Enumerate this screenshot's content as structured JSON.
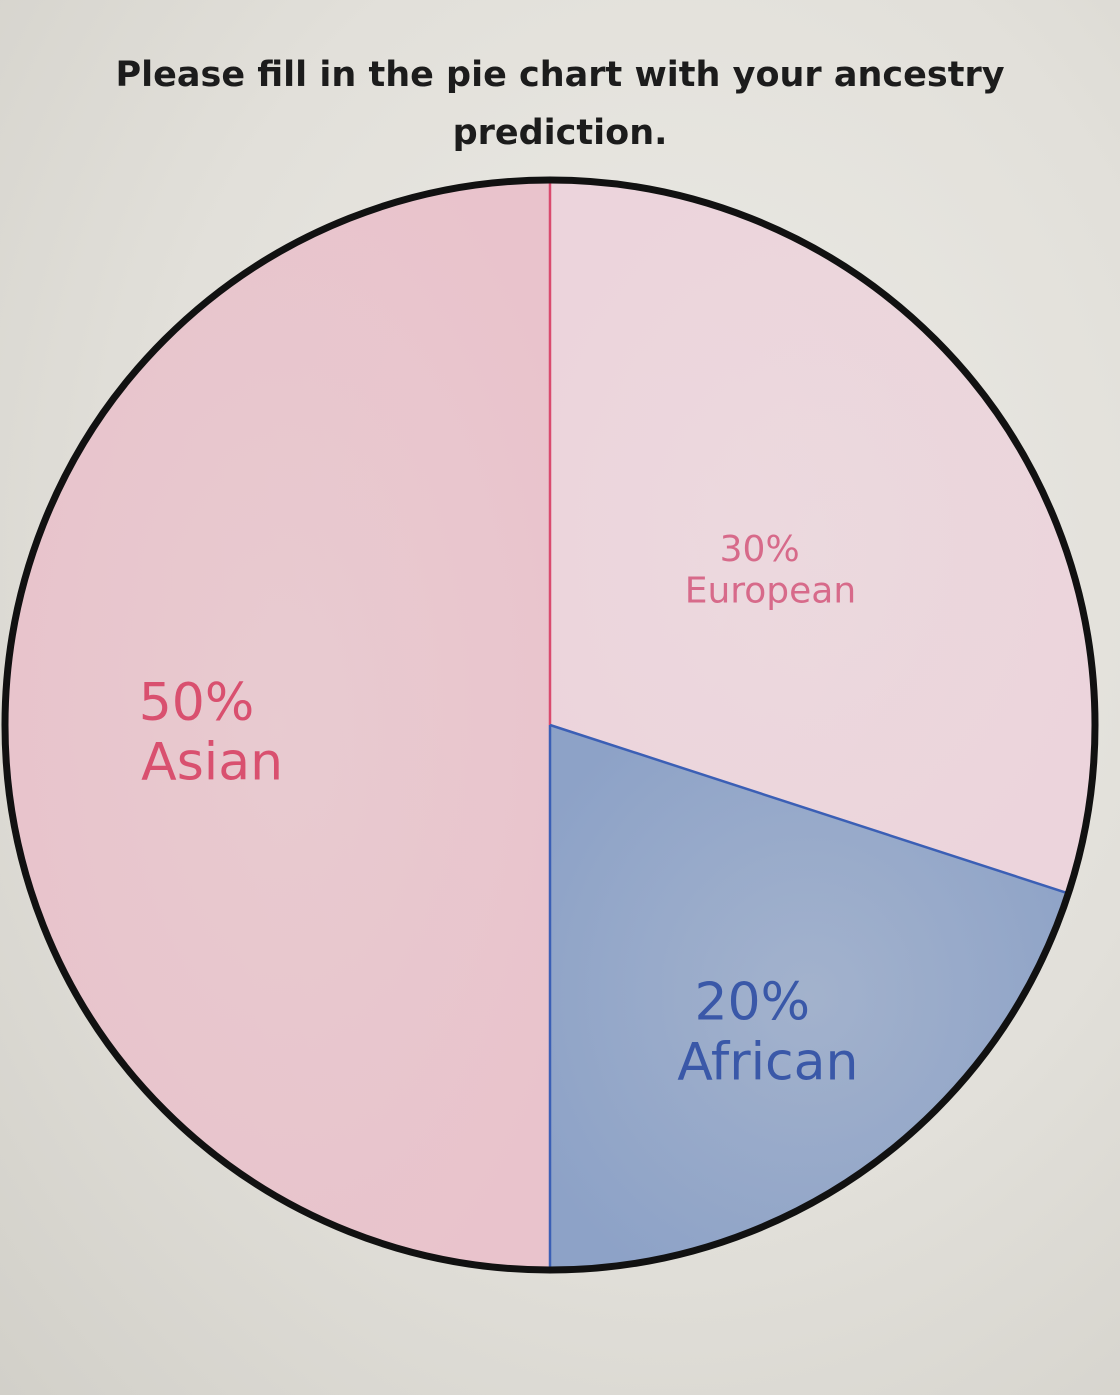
{
  "heading": "Please fill in the pie chart with your ancestry prediction.",
  "chart_data": {
    "type": "pie",
    "title": "Please fill in the pie chart with your ancestry prediction.",
    "slices": [
      {
        "label": "Asian",
        "percent_text": "50%",
        "value": 50,
        "color": "#e9c3cc",
        "line_color": "#d94a6e",
        "text_color": "#d9506f"
      },
      {
        "label": "European",
        "percent_text": "30%",
        "value": 30,
        "color": "#ecd4dc",
        "line_color": "#d94a6e",
        "text_color": "#d76a8a"
      },
      {
        "label": "African",
        "percent_text": "20%",
        "value": 20,
        "color": "#8da2c7",
        "line_color": "#3b5fb5",
        "text_color": "#3a58a8"
      }
    ],
    "outline_color": "#111111"
  }
}
